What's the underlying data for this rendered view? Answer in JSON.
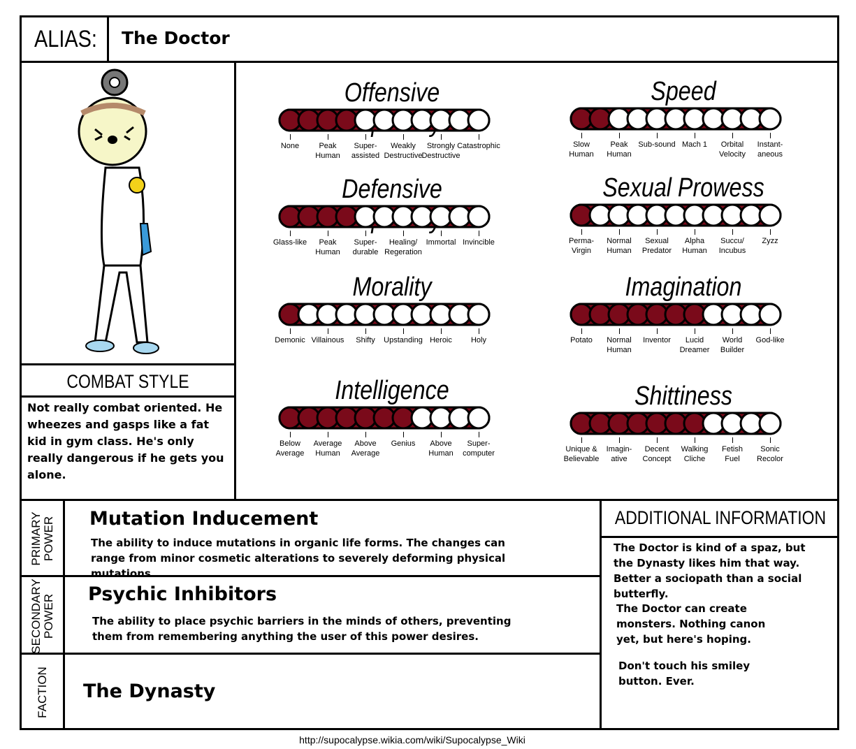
{
  "alias": {
    "label": "ALIAS:",
    "name": "The Doctor"
  },
  "combat_style": {
    "heading": "COMBAT STYLE",
    "text": "Not really combat oriented. He wheezes and gasps like a fat kid in gym class. He's only really dangerous if he gets you alone."
  },
  "fill_color": "#7a0a1a",
  "meters": [
    {
      "title": "Offensive Capability",
      "filled": 4,
      "segments": 11,
      "labels": [
        "None",
        "Peak\nHuman",
        "Super-\nassisted",
        "Weakly\nDestructive",
        "Strongly\nDestructive",
        "Catastrophic"
      ]
    },
    {
      "title": "Speed",
      "filled": 2,
      "segments": 11,
      "labels": [
        "Slow\nHuman",
        "Peak\nHuman",
        "Sub-sound",
        "Mach 1",
        "Orbital\nVelocity",
        "Instant-\naneous"
      ]
    },
    {
      "title": "Defensive Capability",
      "filled": 4,
      "segments": 11,
      "labels": [
        "Glass-like",
        "Peak\nHuman",
        "Super-\ndurable",
        "Healing/\nRegeration",
        "Immortal",
        "Invincible"
      ]
    },
    {
      "title": "Sexual Prowess",
      "filled": 1,
      "segments": 11,
      "labels": [
        "Perma-\nVirgin",
        "Normal\nHuman",
        "Sexual\nPredator",
        "Alpha\nHuman",
        "Succu/\nIncubus",
        "Zyzz"
      ]
    },
    {
      "title": "Morality",
      "filled": 1,
      "segments": 11,
      "labels": [
        "Demonic",
        "Villainous",
        "Shifty",
        "Upstanding",
        "Heroic",
        "Holy"
      ]
    },
    {
      "title": "Imagination",
      "filled": 7,
      "segments": 11,
      "labels": [
        "Potato",
        "Normal\nHuman",
        "Inventor",
        "Lucid\nDreamer",
        "World\nBuilder",
        "God-like"
      ]
    },
    {
      "title": "Intelligence",
      "filled": 7,
      "segments": 11,
      "labels": [
        "Below\nAverage",
        "Average\nHuman",
        "Above\nAverage",
        "Genius",
        "Above\nHuman",
        "Super-\ncomputer"
      ]
    },
    {
      "title": "Shittiness",
      "filled": 7,
      "segments": 11,
      "labels": [
        "Unique &\nBelievable",
        "Imagin-\native",
        "Decent\nConcept",
        "Walking\nCliche",
        "Fetish\nFuel",
        "Sonic\nRecolor"
      ]
    }
  ],
  "primary_power": {
    "label": "PRIMARY\nPOWER",
    "title": "Mutation Inducement",
    "desc": "The ability to induce mutations in organic life forms. The changes can range from minor cosmetic alterations to severely deforming physical mutations."
  },
  "secondary_power": {
    "label": "SECONDARY\nPOWER",
    "title": "Psychic Inhibitors",
    "desc": "The ability to place psychic barriers in the minds of others, preventing them from remembering anything the user of this power desires."
  },
  "faction": {
    "label": "FACTION",
    "name": "The Dynasty"
  },
  "additional": {
    "heading": "ADDITIONAL INFORMATION",
    "paragraphs": [
      "The Doctor is kind of a spaz, but the Dynasty likes him that way. Better a sociopath than a social butterfly.",
      "The Doctor can create monsters. Nothing canon yet, but here's hoping.",
      "Don't touch his smiley button. Ever."
    ]
  },
  "footer_url": "http://supocalypse.wikia.com/wiki/Supocalypse_Wiki"
}
